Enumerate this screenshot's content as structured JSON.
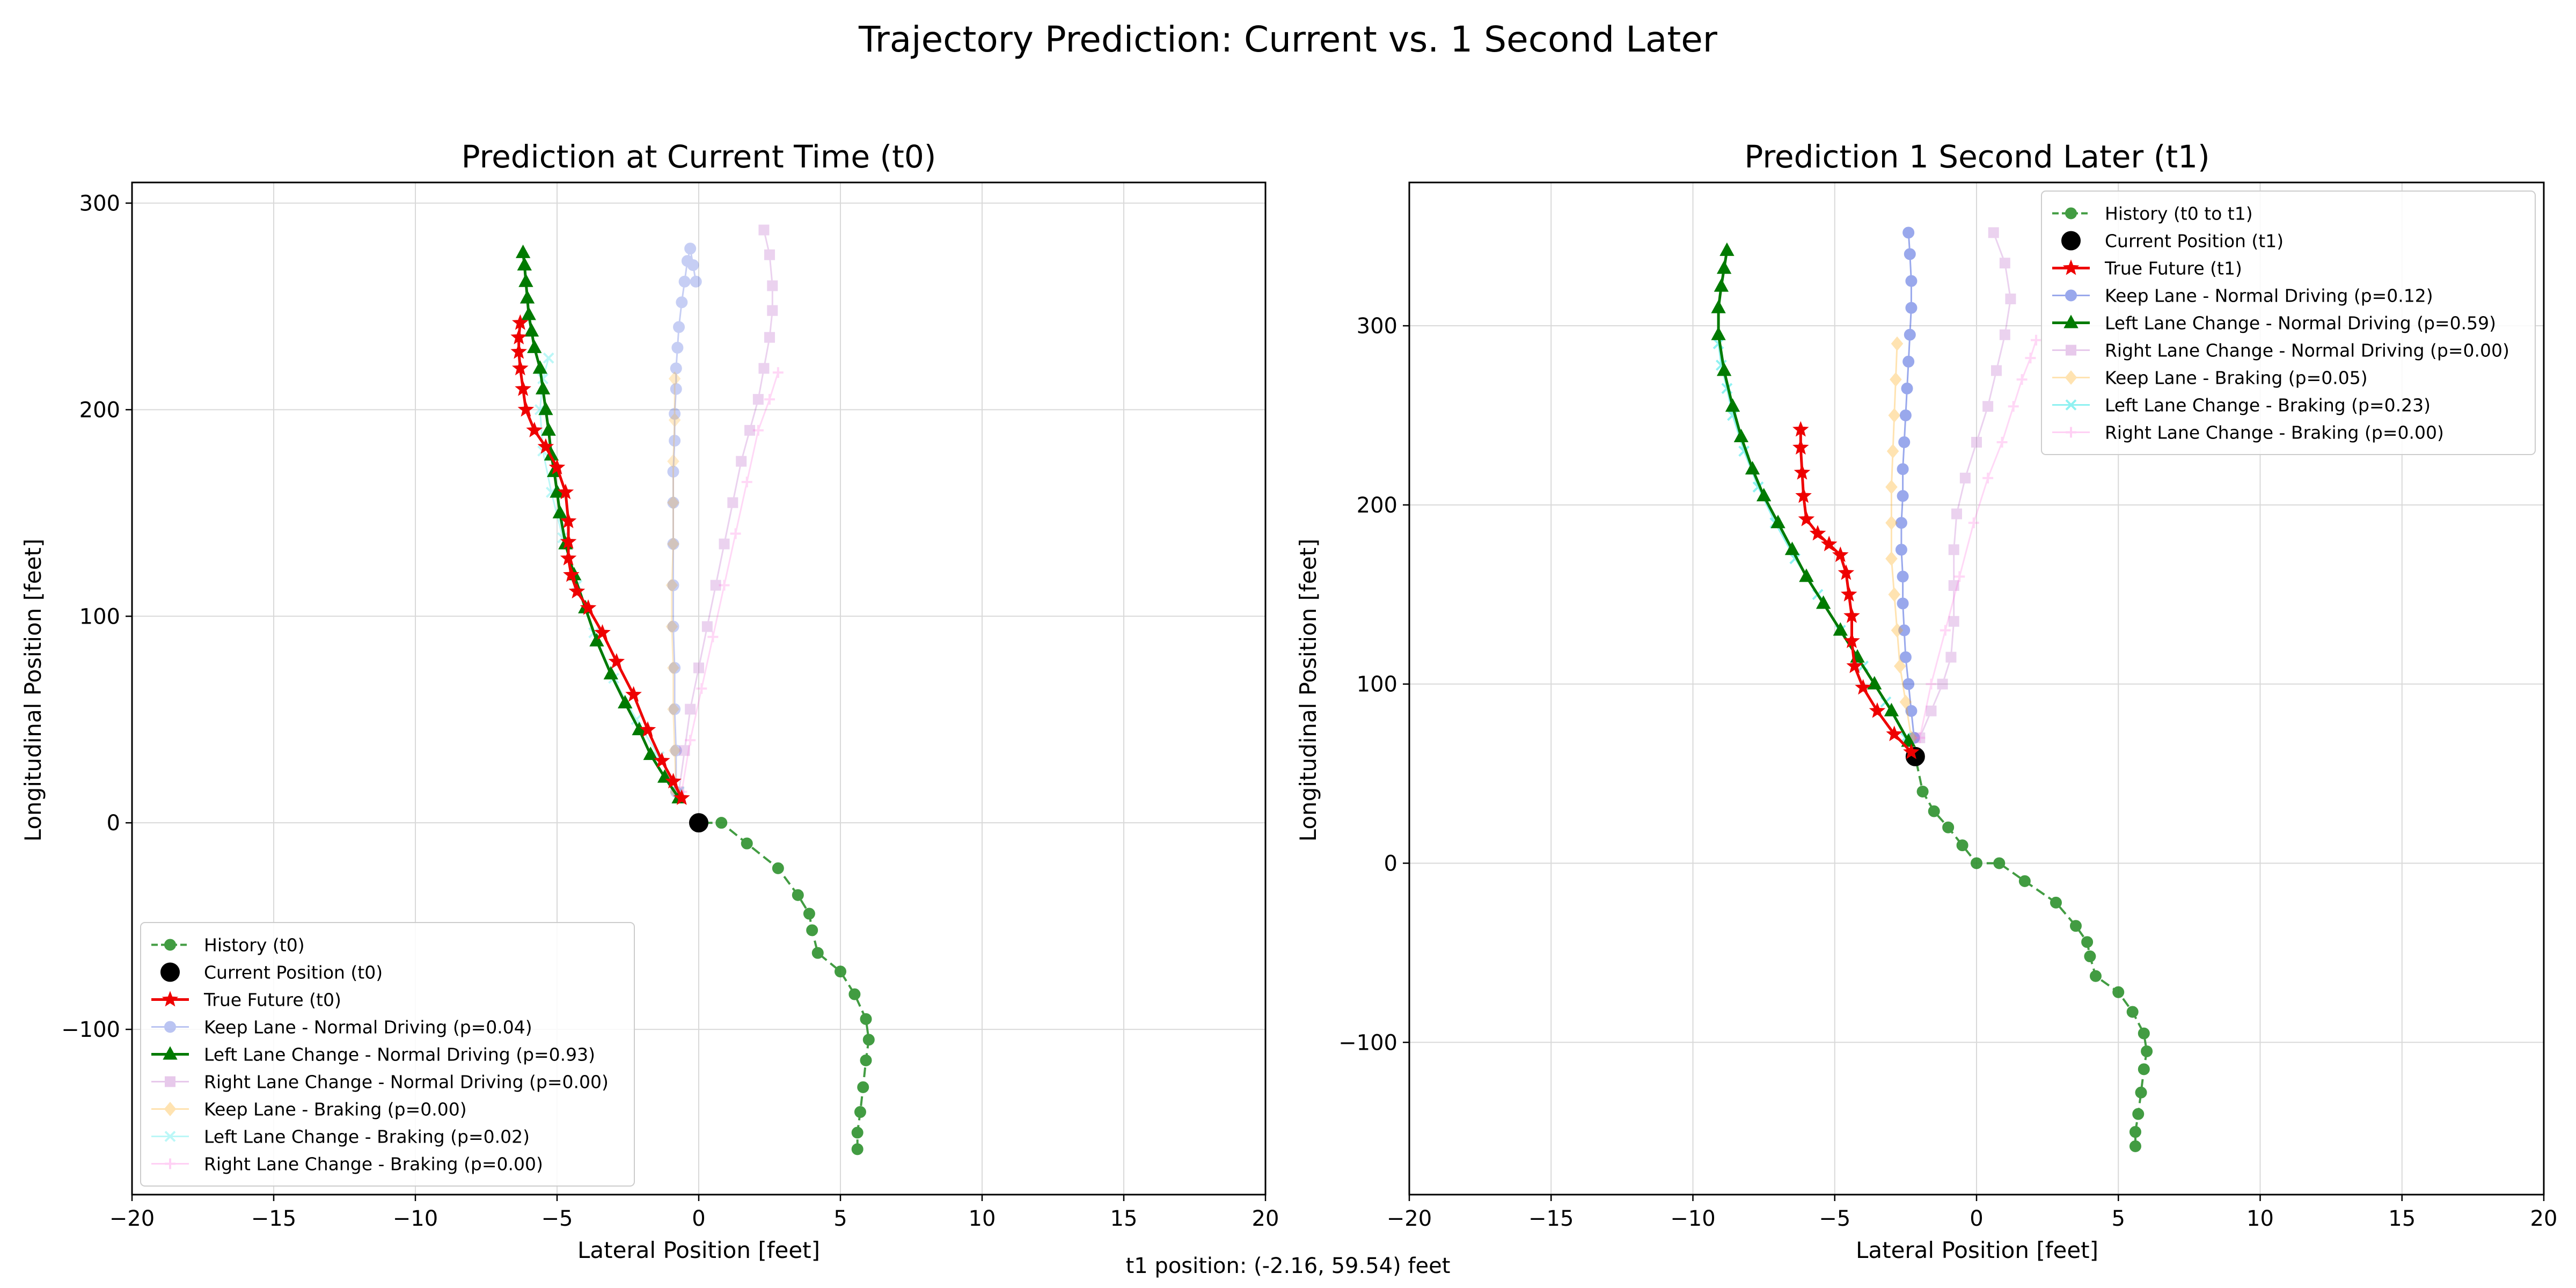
{
  "figure": {
    "title": "Trajectory Prediction: Current vs. 1 Second Later",
    "footer": "t1 position: (-2.16, 59.54) feet"
  },
  "chart_data": [
    {
      "type": "line",
      "title": "Prediction at Current Time (t0)",
      "xlabel": "Lateral Position [feet]",
      "ylabel": "Longitudinal Position [feet]",
      "xlim": [
        -20,
        20
      ],
      "ylim": [
        -180,
        310
      ],
      "xticks": [
        -20,
        -15,
        -10,
        -5,
        0,
        5,
        10,
        15,
        20
      ],
      "yticks": [
        -100,
        0,
        100,
        200,
        300
      ],
      "grid": true,
      "legend_position": "lower left",
      "series": [
        {
          "name": "History (t0)",
          "color": "#228b22",
          "dash": "dashed",
          "marker": "circle",
          "opacity": 0.85,
          "width": 4,
          "x": [
            5.6,
            5.6,
            5.7,
            5.8,
            5.9,
            6.0,
            5.9,
            5.5,
            5.0,
            4.2,
            4.0,
            3.9,
            3.5,
            2.8,
            1.7,
            0.8,
            0.0
          ],
          "y": [
            -158,
            -150,
            -140,
            -128,
            -115,
            -105,
            -95,
            -83,
            -72,
            -63,
            -52,
            -44,
            -35,
            -22,
            -10,
            0,
            0
          ]
        },
        {
          "name": "Current Position (t0)",
          "color": "#000000",
          "marker": "bigdot",
          "opacity": 1,
          "width": 0,
          "x": [
            0.0
          ],
          "y": [
            0.0
          ]
        },
        {
          "name": "Keep Lane - Normal Driving (p=0.04)",
          "color": "#1f3fd6",
          "marker": "circle",
          "opacity": 0.25,
          "width": 3,
          "x": [
            -0.8,
            -0.8,
            -0.85,
            -0.85,
            -0.9,
            -0.9,
            -0.9,
            -0.9,
            -0.9,
            -0.85,
            -0.85,
            -0.8,
            -0.8,
            -0.75,
            -0.7,
            -0.6,
            -0.5,
            -0.4,
            -0.3,
            -0.2,
            -0.1
          ],
          "y": [
            15,
            35,
            55,
            75,
            95,
            115,
            135,
            155,
            170,
            185,
            198,
            210,
            220,
            230,
            240,
            252,
            262,
            272,
            278,
            270,
            262
          ]
        },
        {
          "name": "Right Lane Change - Normal Driving (p=0.00)",
          "color": "#b14fc0",
          "marker": "square",
          "opacity": 0.25,
          "width": 3,
          "x": [
            -0.7,
            -0.5,
            -0.3,
            0.0,
            0.3,
            0.6,
            0.9,
            1.2,
            1.5,
            1.8,
            2.1,
            2.3,
            2.5,
            2.6,
            2.6,
            2.5,
            2.3
          ],
          "y": [
            15,
            35,
            55,
            75,
            95,
            115,
            135,
            155,
            175,
            190,
            205,
            220,
            235,
            248,
            260,
            275,
            287
          ]
        },
        {
          "name": "Keep Lane - Braking (p=0.00)",
          "color": "#ffa500",
          "marker": "diamond",
          "opacity": 0.22,
          "width": 3,
          "x": [
            -0.8,
            -0.85,
            -0.9,
            -0.9,
            -0.95,
            -0.95,
            -0.9,
            -0.9,
            -0.9,
            -0.85,
            -0.85
          ],
          "y": [
            15,
            35,
            55,
            75,
            95,
            115,
            135,
            155,
            175,
            195,
            215
          ]
        },
        {
          "name": "Left Lane Change - Braking (p=0.02)",
          "color": "#22e5e5",
          "marker": "x",
          "opacity": 0.3,
          "width": 3,
          "x": [
            -0.7,
            -1.4,
            -2.2,
            -3.0,
            -3.7,
            -4.3,
            -4.8,
            -5.2,
            -5.5,
            -5.6,
            -5.5,
            -5.3
          ],
          "y": [
            15,
            32,
            50,
            70,
            92,
            115,
            138,
            160,
            180,
            200,
            215,
            225
          ]
        },
        {
          "name": "Right Lane Change - Braking (p=0.00)",
          "color": "#ff66dd",
          "marker": "plus",
          "opacity": 0.25,
          "width": 3,
          "x": [
            -0.6,
            -0.3,
            0.1,
            0.5,
            0.9,
            1.3,
            1.7,
            2.1,
            2.5,
            2.8
          ],
          "y": [
            15,
            40,
            65,
            90,
            115,
            140,
            165,
            190,
            205,
            218
          ]
        },
        {
          "name": "Left Lane Change - Normal Driving (p=0.93)",
          "color": "#007a00",
          "marker": "triangle",
          "opacity": 1,
          "width": 5,
          "x": [
            -0.7,
            -1.2,
            -1.7,
            -2.1,
            -2.6,
            -3.1,
            -3.6,
            -4.0,
            -4.4,
            -4.7,
            -4.9,
            -5.0,
            -5.1,
            -5.2,
            -5.3,
            -5.4,
            -5.5,
            -5.6,
            -5.8,
            -5.9,
            -6.0,
            -6.05,
            -6.1,
            -6.15,
            -6.2
          ],
          "y": [
            12,
            22,
            33,
            45,
            58,
            72,
            88,
            104,
            120,
            135,
            150,
            160,
            170,
            178,
            190,
            200,
            210,
            220,
            230,
            238,
            246,
            254,
            262,
            270,
            276
          ]
        },
        {
          "name": "True Future (t0)",
          "color": "#ee0000",
          "marker": "star",
          "opacity": 1,
          "width": 5,
          "x": [
            -0.6,
            -0.9,
            -1.3,
            -1.8,
            -2.3,
            -2.9,
            -3.4,
            -3.9,
            -4.3,
            -4.5,
            -4.6,
            -4.6,
            -4.6,
            -4.7,
            -5.0,
            -5.4,
            -5.8,
            -6.1,
            -6.2,
            -6.3,
            -6.35,
            -6.35,
            -6.3
          ],
          "y": [
            12,
            20,
            30,
            45,
            62,
            78,
            92,
            104,
            112,
            120,
            128,
            136,
            146,
            160,
            172,
            182,
            190,
            200,
            210,
            220,
            228,
            235,
            242
          ]
        }
      ]
    },
    {
      "type": "line",
      "title": "Prediction 1 Second Later (t1)",
      "xlabel": "Lateral Position [feet]",
      "ylabel": "Longitudinal Position [feet]",
      "xlim": [
        -20,
        20
      ],
      "ylim": [
        -185,
        380
      ],
      "xticks": [
        -20,
        -15,
        -10,
        -5,
        0,
        5,
        10,
        15,
        20
      ],
      "yticks": [
        -100,
        0,
        100,
        200,
        300
      ],
      "grid": true,
      "legend_position": "upper right",
      "series": [
        {
          "name": "History (t0 to t1)",
          "color": "#228b22",
          "dash": "dashed",
          "marker": "circle",
          "opacity": 0.85,
          "width": 4,
          "x": [
            5.6,
            5.6,
            5.7,
            5.8,
            5.9,
            6.0,
            5.9,
            5.5,
            5.0,
            4.2,
            4.0,
            3.9,
            3.5,
            2.8,
            1.7,
            0.8,
            0.0,
            -0.5,
            -1.0,
            -1.5,
            -1.9,
            -2.16
          ],
          "y": [
            -158,
            -150,
            -140,
            -128,
            -115,
            -105,
            -95,
            -83,
            -72,
            -63,
            -52,
            -44,
            -35,
            -22,
            -10,
            0,
            0,
            10,
            20,
            29,
            40,
            59.54
          ]
        },
        {
          "name": "Current Position (t1)",
          "color": "#000000",
          "marker": "bigdot",
          "opacity": 1,
          "width": 0,
          "x": [
            -2.16
          ],
          "y": [
            59.54
          ]
        },
        {
          "name": "Keep Lane - Normal Driving (p=0.12)",
          "color": "#1f3fd6",
          "marker": "circle",
          "opacity": 0.45,
          "width": 3,
          "x": [
            -2.2,
            -2.3,
            -2.4,
            -2.5,
            -2.55,
            -2.6,
            -2.6,
            -2.65,
            -2.65,
            -2.6,
            -2.6,
            -2.55,
            -2.5,
            -2.45,
            -2.4,
            -2.35,
            -2.3,
            -2.3,
            -2.35,
            -2.4
          ],
          "y": [
            70,
            85,
            100,
            115,
            130,
            145,
            160,
            175,
            190,
            205,
            220,
            235,
            250,
            265,
            280,
            295,
            310,
            325,
            340,
            352
          ]
        },
        {
          "name": "Right Lane Change - Normal Driving (p=0.00)",
          "color": "#b14fc0",
          "marker": "square",
          "opacity": 0.25,
          "width": 3,
          "x": [
            -2.0,
            -1.6,
            -1.2,
            -0.9,
            -0.8,
            -0.8,
            -0.8,
            -0.7,
            -0.4,
            0.0,
            0.4,
            0.7,
            1.0,
            1.2,
            1.0,
            0.6
          ],
          "y": [
            70,
            85,
            100,
            115,
            135,
            155,
            175,
            195,
            215,
            235,
            255,
            275,
            295,
            315,
            335,
            352
          ]
        },
        {
          "name": "Keep Lane - Braking (p=0.05)",
          "color": "#ffa500",
          "marker": "diamond",
          "opacity": 0.3,
          "width": 3,
          "x": [
            -2.3,
            -2.5,
            -2.7,
            -2.8,
            -2.9,
            -3.0,
            -3.0,
            -3.0,
            -2.95,
            -2.9,
            -2.85,
            -2.8
          ],
          "y": [
            70,
            90,
            110,
            130,
            150,
            170,
            190,
            210,
            230,
            250,
            270,
            290
          ]
        },
        {
          "name": "Right Lane Change - Braking (p=0.00)",
          "color": "#ff66dd",
          "marker": "plus",
          "opacity": 0.25,
          "width": 3,
          "x": [
            -2.0,
            -1.6,
            -1.1,
            -0.6,
            -0.1,
            0.4,
            0.9,
            1.3,
            1.6,
            1.9,
            2.1
          ],
          "y": [
            70,
            100,
            130,
            160,
            190,
            215,
            235,
            255,
            270,
            282,
            292
          ]
        },
        {
          "name": "Left Lane Change - Braking (p=0.23)",
          "color": "#22e5e5",
          "marker": "x",
          "opacity": 0.5,
          "width": 3,
          "x": [
            -2.5,
            -3.2,
            -4.0,
            -4.8,
            -5.6,
            -6.4,
            -7.1,
            -7.7,
            -8.2,
            -8.6,
            -8.8,
            -9.0,
            -9.1
          ],
          "y": [
            70,
            90,
            110,
            130,
            150,
            170,
            190,
            210,
            230,
            250,
            265,
            278,
            290
          ]
        },
        {
          "name": "Left Lane Change - Normal Driving (p=0.59)",
          "color": "#007a00",
          "marker": "triangle",
          "opacity": 1,
          "width": 5,
          "x": [
            -2.4,
            -3.0,
            -3.6,
            -4.2,
            -4.8,
            -5.4,
            -6.0,
            -6.5,
            -7.0,
            -7.5,
            -7.9,
            -8.3,
            -8.6,
            -8.9,
            -9.1,
            -9.1,
            -9.0,
            -8.9,
            -8.8
          ],
          "y": [
            68,
            85,
            100,
            115,
            130,
            145,
            160,
            175,
            190,
            205,
            220,
            238,
            255,
            275,
            295,
            310,
            322,
            332,
            342
          ]
        },
        {
          "name": "True Future (t1)",
          "color": "#ee0000",
          "marker": "star",
          "opacity": 1,
          "width": 5,
          "x": [
            -2.3,
            -2.9,
            -3.5,
            -4.0,
            -4.3,
            -4.4,
            -4.4,
            -4.5,
            -4.6,
            -4.8,
            -5.2,
            -5.6,
            -6.0,
            -6.1,
            -6.15,
            -6.2,
            -6.2
          ],
          "y": [
            62,
            72,
            85,
            98,
            110,
            124,
            138,
            150,
            162,
            172,
            178,
            184,
            192,
            205,
            218,
            232,
            242
          ]
        }
      ]
    }
  ]
}
